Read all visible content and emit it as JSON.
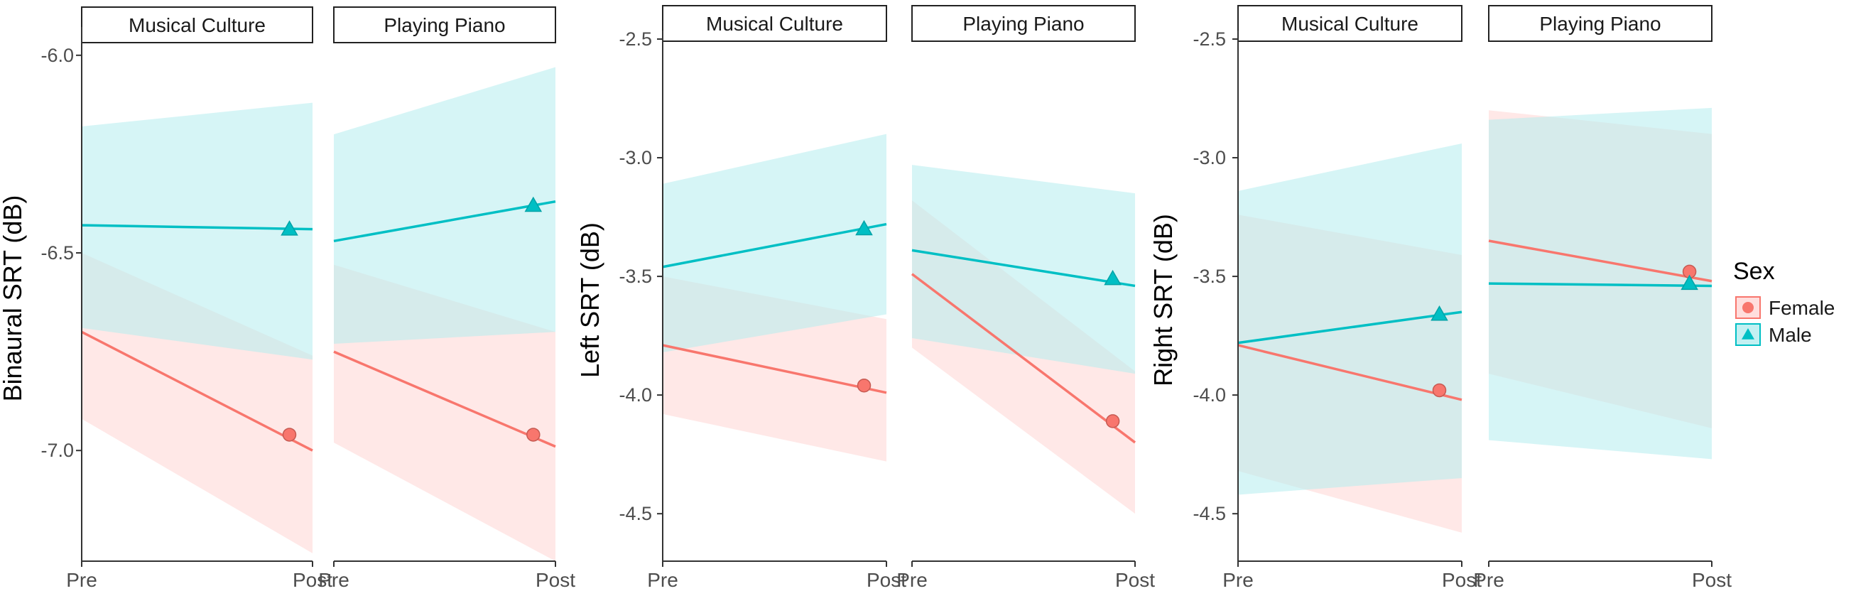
{
  "colors": {
    "female": "#f8766d",
    "male": "#00bfc4",
    "female_fill": "#ffd6d4",
    "male_fill": "#b4ecef",
    "axis": "#333333",
    "strip_border": "#222222"
  },
  "legend": {
    "title": "Sex",
    "entries": [
      {
        "label": "Female",
        "marker": "circle"
      },
      {
        "label": "Male",
        "marker": "triangle"
      }
    ]
  },
  "chart_data": [
    {
      "type": "line",
      "ylabel": "Binaural SRT (dB)",
      "ylim": [
        -7.28,
        -5.95
      ],
      "yticks": [
        -6.0,
        -6.5,
        -7.0
      ],
      "ytick_labels": [
        "-6.0",
        "-6.5",
        "-7.0"
      ],
      "x_tick_labels": [
        "Pre",
        "Post"
      ],
      "facets": [
        {
          "title": "Musical Culture",
          "series": [
            {
              "name": "Female",
              "line": [
                -6.7,
                -7.0
              ],
              "ribbon_upper": [
                -6.5,
                -6.76
              ],
              "ribbon_lower": [
                -6.92,
                -7.26
              ],
              "point": -6.96
            },
            {
              "name": "Male",
              "line": [
                -6.43,
                -6.44
              ],
              "ribbon_upper": [
                -6.18,
                -6.12
              ],
              "ribbon_lower": [
                -6.69,
                -6.77
              ],
              "point": -6.44
            }
          ]
        },
        {
          "title": "Playing Piano",
          "series": [
            {
              "name": "Female",
              "line": [
                -6.75,
                -6.99
              ],
              "ribbon_upper": [
                -6.53,
                -6.7
              ],
              "ribbon_lower": [
                -6.98,
                -7.28
              ],
              "point": -6.96
            },
            {
              "name": "Male",
              "line": [
                -6.47,
                -6.37
              ],
              "ribbon_upper": [
                -6.2,
                -6.03
              ],
              "ribbon_lower": [
                -6.73,
                -6.7
              ],
              "point": -6.38
            }
          ]
        }
      ]
    },
    {
      "type": "line",
      "ylabel": "Left SRT (dB)",
      "ylim": [
        -4.7,
        -2.5
      ],
      "yticks": [
        -2.5,
        -3.0,
        -3.5,
        -4.0,
        -4.5
      ],
      "ytick_labels": [
        "-2.5",
        "-3.0",
        "-3.5",
        "-4.0",
        "-4.5"
      ],
      "x_tick_labels": [
        "Pre",
        "Post"
      ],
      "facets": [
        {
          "title": "Musical Culture",
          "series": [
            {
              "name": "Female",
              "line": [
                -3.79,
                -3.99
              ],
              "ribbon_upper": [
                -3.5,
                -3.68
              ],
              "ribbon_lower": [
                -4.08,
                -4.28
              ],
              "point": -3.96
            },
            {
              "name": "Male",
              "line": [
                -3.46,
                -3.28
              ],
              "ribbon_upper": [
                -3.11,
                -2.9
              ],
              "ribbon_lower": [
                -3.82,
                -3.66
              ],
              "point": -3.3
            }
          ]
        },
        {
          "title": "Playing Piano",
          "series": [
            {
              "name": "Female",
              "line": [
                -3.49,
                -4.2
              ],
              "ribbon_upper": [
                -3.18,
                -3.9
              ],
              "ribbon_lower": [
                -3.8,
                -4.5
              ],
              "point": -4.11
            },
            {
              "name": "Male",
              "line": [
                -3.39,
                -3.54
              ],
              "ribbon_upper": [
                -3.03,
                -3.15
              ],
              "ribbon_lower": [
                -3.76,
                -3.91
              ],
              "point": -3.51
            }
          ]
        }
      ]
    },
    {
      "type": "line",
      "ylabel": "Right SRT (dB)",
      "ylim": [
        -4.7,
        -2.5
      ],
      "yticks": [
        -2.5,
        -3.0,
        -3.5,
        -4.0,
        -4.5
      ],
      "ytick_labels": [
        "-2.5",
        "-3.0",
        "-3.5",
        "-4.0",
        "-4.5"
      ],
      "x_tick_labels": [
        "Pre",
        "Post"
      ],
      "facets": [
        {
          "title": "Musical Culture",
          "series": [
            {
              "name": "Female",
              "line": [
                -3.79,
                -4.02
              ],
              "ribbon_upper": [
                -3.24,
                -3.41
              ],
              "ribbon_lower": [
                -4.32,
                -4.58
              ],
              "point": -3.98
            },
            {
              "name": "Male",
              "line": [
                -3.78,
                -3.65
              ],
              "ribbon_upper": [
                -3.14,
                -2.94
              ],
              "ribbon_lower": [
                -4.42,
                -4.35
              ],
              "point": -3.66
            }
          ]
        },
        {
          "title": "Playing Piano",
          "series": [
            {
              "name": "Female",
              "line": [
                -3.35,
                -3.52
              ],
              "ribbon_upper": [
                -2.8,
                -2.9
              ],
              "ribbon_lower": [
                -3.91,
                -4.14
              ],
              "point": -3.48
            },
            {
              "name": "Male",
              "line": [
                -3.53,
                -3.54
              ],
              "ribbon_upper": [
                -2.84,
                -2.79
              ],
              "ribbon_lower": [
                -4.19,
                -4.27
              ],
              "point": -3.53
            }
          ]
        }
      ]
    }
  ]
}
